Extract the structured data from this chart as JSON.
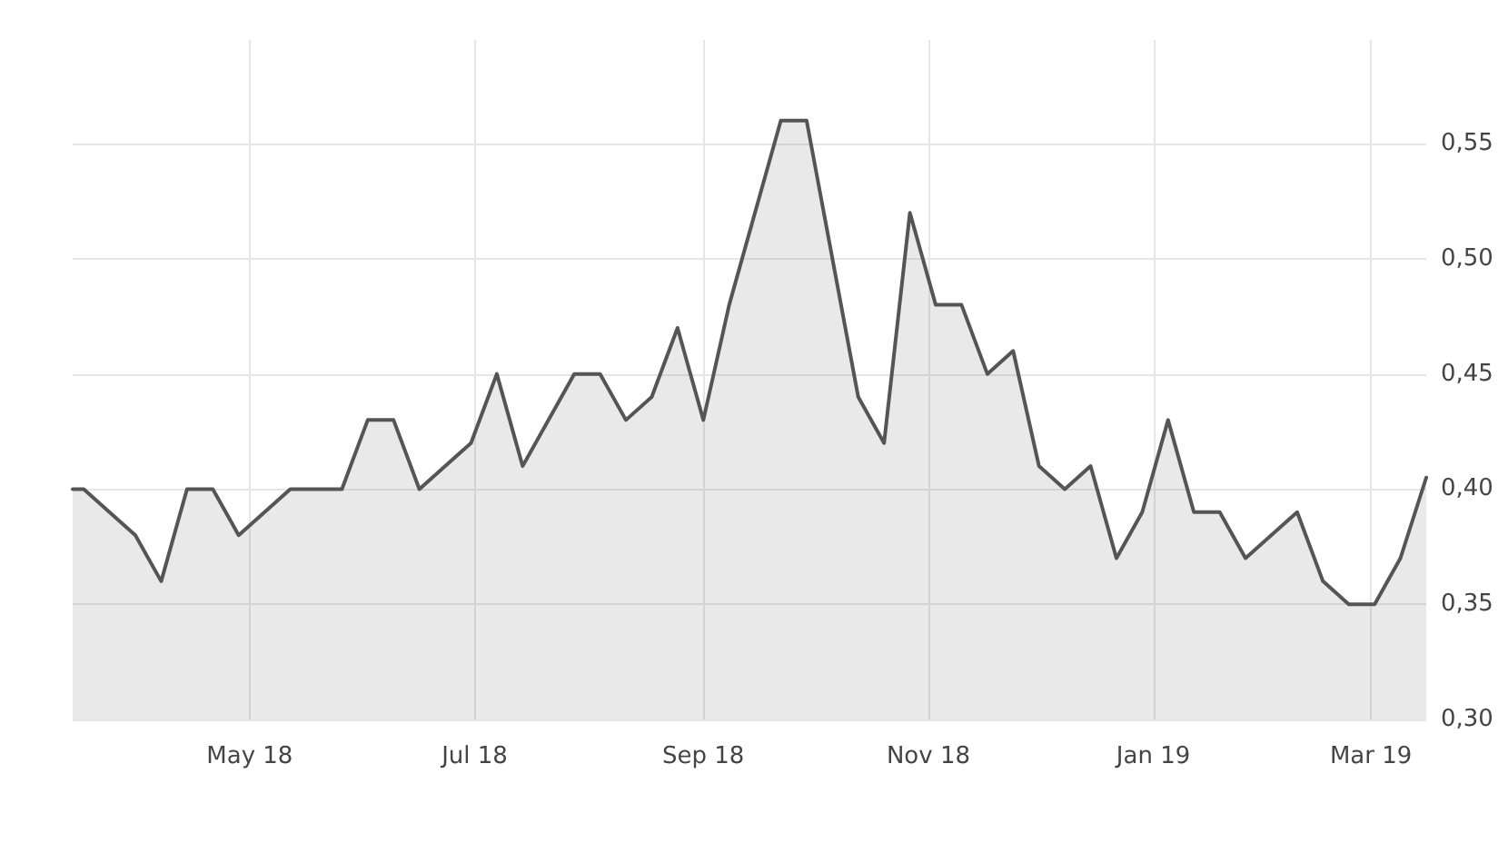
{
  "chart_data": {
    "type": "area",
    "x": [
      "2018-03-14",
      "2018-03-17",
      "2018-03-31",
      "2018-04-07",
      "2018-04-14",
      "2018-04-21",
      "2018-04-28",
      "2018-05-12",
      "2018-05-26",
      "2018-06-02",
      "2018-06-09",
      "2018-06-16",
      "2018-06-30",
      "2018-07-07",
      "2018-07-14",
      "2018-07-28",
      "2018-08-04",
      "2018-08-11",
      "2018-08-18",
      "2018-08-25",
      "2018-09-01",
      "2018-09-08",
      "2018-09-22",
      "2018-09-29",
      "2018-10-13",
      "2018-10-20",
      "2018-10-27",
      "2018-11-03",
      "2018-11-10",
      "2018-11-17",
      "2018-11-24",
      "2018-12-01",
      "2018-12-08",
      "2018-12-15",
      "2018-12-22",
      "2018-12-29",
      "2019-01-05",
      "2019-01-12",
      "2019-01-19",
      "2019-01-26",
      "2019-02-09",
      "2019-02-16",
      "2019-02-23",
      "2019-03-02",
      "2019-03-09",
      "2019-03-16"
    ],
    "series": [
      {
        "color": "#555555",
        "values": [
          0.4,
          0.4,
          0.38,
          0.36,
          0.4,
          0.4,
          0.38,
          0.4,
          0.4,
          0.43,
          0.43,
          0.4,
          0.42,
          0.45,
          0.41,
          0.45,
          0.45,
          0.43,
          0.44,
          0.47,
          0.43,
          0.48,
          0.56,
          0.56,
          0.44,
          0.42,
          0.52,
          0.48,
          0.48,
          0.45,
          0.46,
          0.41,
          0.4,
          0.41,
          0.37,
          0.39,
          0.43,
          0.39,
          0.39,
          0.37,
          0.39,
          0.36,
          0.35,
          0.35,
          0.37,
          0.405
        ]
      }
    ],
    "xlim": [
      "2018-03-14",
      "2019-03-16"
    ],
    "xticks": [
      {
        "value": "2018-05-01",
        "label": "May 18"
      },
      {
        "value": "2018-07-01",
        "label": "Jul 18"
      },
      {
        "value": "2018-09-01",
        "label": "Sep 18"
      },
      {
        "value": "2018-11-01",
        "label": "Nov 18"
      },
      {
        "value": "2019-01-01",
        "label": "Jan 19"
      },
      {
        "value": "2019-03-01",
        "label": "Mar 19"
      }
    ],
    "ylim": [
      0.3,
      0.595
    ],
    "yticks": [
      {
        "value": 0.3,
        "label": "0,30"
      },
      {
        "value": 0.35,
        "label": "0,35"
      },
      {
        "value": 0.4,
        "label": "0,40"
      },
      {
        "value": 0.45,
        "label": "0,45"
      },
      {
        "value": 0.5,
        "label": "0,50"
      },
      {
        "value": 0.55,
        "label": "0,55"
      }
    ],
    "grid": true,
    "marker": "none",
    "line_style": "solid"
  }
}
